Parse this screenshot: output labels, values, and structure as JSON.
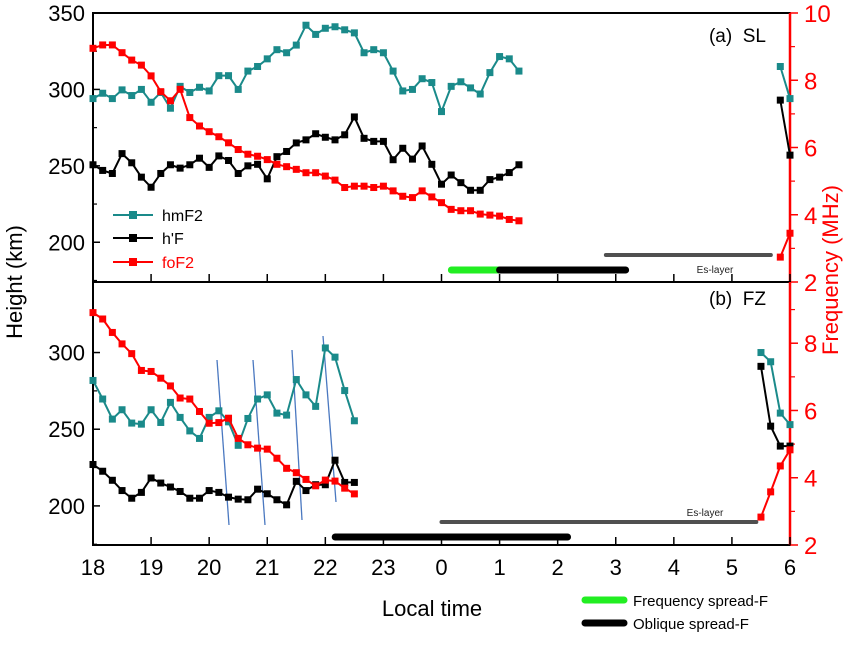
{
  "chart_data": [
    {
      "type": "line",
      "panel_label": "(a)  SL",
      "x_start_hour": 18,
      "step_minutes": 10,
      "ylabel": "Height (km)",
      "y2label": "Frequency (MHz)",
      "ylim": [
        174,
        350
      ],
      "y2lim": [
        2,
        10
      ],
      "yticks": [
        200,
        250,
        300,
        350
      ],
      "y2ticks": [
        2,
        4,
        6,
        8,
        10
      ],
      "legend": [
        "hmF2",
        "h'F",
        "foF2"
      ],
      "legend_placement": "bottom-left",
      "series": [
        {
          "name": "hmF2",
          "axis": "left",
          "color": "#1a8a8a",
          "values": [
            294,
            297.5,
            294,
            299.7,
            296,
            300,
            291.6,
            298,
            287.7,
            302,
            298,
            301.4,
            299,
            309,
            309,
            300,
            312,
            315,
            320,
            326,
            324,
            329,
            342,
            336,
            340,
            341,
            339,
            337,
            324,
            326,
            324,
            312,
            299,
            300,
            307,
            304.5,
            285.5,
            302,
            305,
            301,
            297,
            311,
            321.5,
            320,
            312
          ],
          "late": [
            [
              5.833,
              315
            ],
            [
              6.0,
              294
            ]
          ]
        },
        {
          "name": "h'F",
          "axis": "left",
          "color": "#000000",
          "values": [
            250.7,
            247,
            245,
            258,
            252,
            242.6,
            236,
            245,
            250.7,
            248.5,
            250.7,
            255,
            249,
            256.5,
            253.5,
            245,
            250,
            251,
            241.5,
            256,
            259.4,
            265,
            267,
            271,
            268.7,
            267,
            270.3,
            282,
            268,
            266,
            266,
            254,
            261.5,
            254.4,
            263,
            251,
            238,
            244,
            239,
            234,
            234,
            241,
            242.6,
            245.6,
            250.7
          ],
          "late": [
            [
              5.833,
              293
            ],
            [
              6.0,
              257
            ]
          ]
        },
        {
          "name": "foF2",
          "axis": "right",
          "color": "#ff0000",
          "values": [
            8.95,
            9.05,
            9.05,
            8.82,
            8.6,
            8.45,
            8.13,
            7.66,
            7.39,
            7.73,
            6.89,
            6.64,
            6.47,
            6.32,
            6.14,
            5.94,
            5.8,
            5.74,
            5.64,
            5.5,
            5.43,
            5.35,
            5.25,
            5.25,
            5.15,
            5.03,
            4.81,
            4.85,
            4.85,
            4.81,
            4.85,
            4.71,
            4.55,
            4.51,
            4.71,
            4.53,
            4.36,
            4.16,
            4.12,
            4.12,
            4.02,
            3.99,
            3.96,
            3.86,
            3.82
          ],
          "late": [
            [
              5.833,
              2.74
            ],
            [
              6.0,
              3.45
            ]
          ]
        }
      ],
      "bars": [
        {
          "kind": "frequency-spread-F",
          "start": 0.17,
          "end": 1.0
        },
        {
          "kind": "oblique-spread-F",
          "start": 1.0,
          "end": 3.17
        },
        {
          "kind": "es-layer",
          "start": 2.83,
          "end": 5.67
        }
      ],
      "es_label": "Es-layer"
    },
    {
      "type": "line",
      "panel_label": "(b)  FZ",
      "x_start_hour": 18,
      "step_minutes": 10,
      "ylim": [
        174.5,
        346
      ],
      "y2lim": [
        2,
        9.82
      ],
      "yticks": [
        200,
        250,
        300
      ],
      "y2ticks": [
        2,
        4,
        6,
        8
      ],
      "series": [
        {
          "name": "hmF2",
          "axis": "left",
          "color": "#1a8a8a",
          "values": [
            281.8,
            269.7,
            256.6,
            262.7,
            254,
            253.3,
            262.7,
            254.4,
            267.5,
            257.7,
            248.9,
            244,
            257.7,
            262,
            254.8,
            239.5,
            257,
            269.7,
            272.4,
            260.5,
            259.2,
            282.4,
            272.4,
            264.9,
            303,
            297,
            275.2,
            255.5
          ],
          "late": [
            [
              5.5,
              300
            ],
            [
              5.667,
              294
            ],
            [
              5.833,
              260.5
            ],
            [
              6.0,
              253
            ]
          ]
        },
        {
          "name": "h'F",
          "axis": "left",
          "color": "#000000",
          "values": [
            227,
            222.6,
            216.7,
            210,
            205,
            208.8,
            218.2,
            214.9,
            212.3,
            209.4,
            205,
            205,
            210,
            208.8,
            205.7,
            204.4,
            204,
            210.9,
            207.9,
            204,
            200.7,
            216,
            210,
            213.8,
            213.8,
            229.8,
            215.3,
            215.3
          ],
          "late": [
            [
              5.5,
              291
            ],
            [
              5.667,
              252
            ],
            [
              5.833,
              239
            ],
            [
              6.0,
              239
            ]
          ]
        },
        {
          "name": "foF2",
          "axis": "right",
          "color": "#ff0000",
          "values": [
            8.91,
            8.72,
            8.32,
            7.98,
            7.69,
            7.19,
            7.16,
            6.96,
            6.73,
            6.37,
            6.34,
            5.97,
            5.62,
            5.64,
            5.77,
            5.17,
            4.98,
            4.88,
            4.85,
            4.58,
            4.28,
            4.15,
            3.95,
            3.76,
            3.93,
            3.9,
            3.69,
            3.52
          ],
          "late": [
            [
              5.5,
              2.83
            ],
            [
              5.667,
              3.58
            ],
            [
              5.833,
              4.35
            ],
            [
              6.0,
              4.83
            ]
          ]
        }
      ],
      "bars": [
        {
          "kind": "oblique-spread-F",
          "start": 22.17,
          "end": 2.17
        },
        {
          "kind": "es-layer",
          "start": 0.0,
          "end": 5.42
        }
      ],
      "es_label": "Es-layer"
    }
  ],
  "x_axis": {
    "label": "Local time",
    "ticks": [
      "18",
      "19",
      "20",
      "21",
      "22",
      "23",
      "0",
      "1",
      "2",
      "3",
      "4",
      "5",
      "6"
    ]
  },
  "legend_bottom": {
    "frequency": "Frequency spread-F",
    "oblique": "Oblique spread-F"
  },
  "colors": {
    "hmF2": "#1a8a8a",
    "hF": "#000000",
    "foF2": "#ff0000",
    "freq_spread": "#22ee22",
    "oblique": "#000000",
    "es": "#505050",
    "slant": "#4a78c0"
  }
}
